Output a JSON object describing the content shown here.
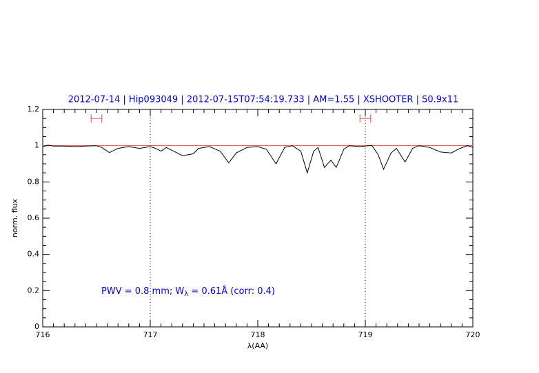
{
  "chart_data": {
    "type": "line",
    "title": "2012-07-14 | Hip093049 | 2012-07-15T07:54:19.733 | AM=1.55 | XSHOOTER | S0.9x11",
    "x_label": "λ(AA)",
    "y_label": "norm. flux",
    "annotation": [
      "PWV = 0.8 mm; W",
      "λ",
      " = 0.61Å (corr: 0.4)"
    ],
    "xlim": [
      716,
      720
    ],
    "xticks": [
      716,
      717,
      718,
      719,
      720
    ],
    "ylim": [
      0,
      1.2
    ],
    "yticks": [
      0,
      0.2,
      0.4,
      0.6,
      0.8,
      1,
      1.2
    ],
    "vlines": [
      717,
      719
    ],
    "hline": 1,
    "hline_color": "#e05050",
    "markers": [
      {
        "x": [
          716.45,
          716.55
        ],
        "y": 1.15
      },
      {
        "x": [
          718.95,
          719.05
        ],
        "y": 1.15
      }
    ],
    "marker_color": "#e05050",
    "series": [
      {
        "color": "#000000",
        "x": [
          716.0,
          716.05,
          716.1,
          716.2,
          716.3,
          716.4,
          716.5,
          716.55,
          716.62,
          716.7,
          716.8,
          716.9,
          717.0,
          717.05,
          717.1,
          717.15,
          717.2,
          717.3,
          717.4,
          717.45,
          717.55,
          717.65,
          717.73,
          717.8,
          717.9,
          718.0,
          718.08,
          718.17,
          718.25,
          718.32,
          718.4,
          718.46,
          718.52,
          718.56,
          718.62,
          718.68,
          718.73,
          718.8,
          718.85,
          718.95,
          719.0,
          719.06,
          719.12,
          719.17,
          719.24,
          719.29,
          719.37,
          719.44,
          719.5,
          719.6,
          719.7,
          719.8,
          719.88,
          719.95,
          720.0
        ],
        "values": [
          0.995,
          1.003,
          0.998,
          0.998,
          0.995,
          0.998,
          1.0,
          0.99,
          0.962,
          0.985,
          0.995,
          0.985,
          0.995,
          0.985,
          0.97,
          0.99,
          0.975,
          0.945,
          0.955,
          0.985,
          0.995,
          0.97,
          0.905,
          0.96,
          0.99,
          0.995,
          0.98,
          0.9,
          0.99,
          1.0,
          0.97,
          0.85,
          0.97,
          0.99,
          0.88,
          0.92,
          0.88,
          0.98,
          1.0,
          0.995,
          0.998,
          1.002,
          0.95,
          0.87,
          0.96,
          0.985,
          0.91,
          0.985,
          1.0,
          0.99,
          0.965,
          0.96,
          0.985,
          1.0,
          0.99
        ]
      }
    ]
  }
}
